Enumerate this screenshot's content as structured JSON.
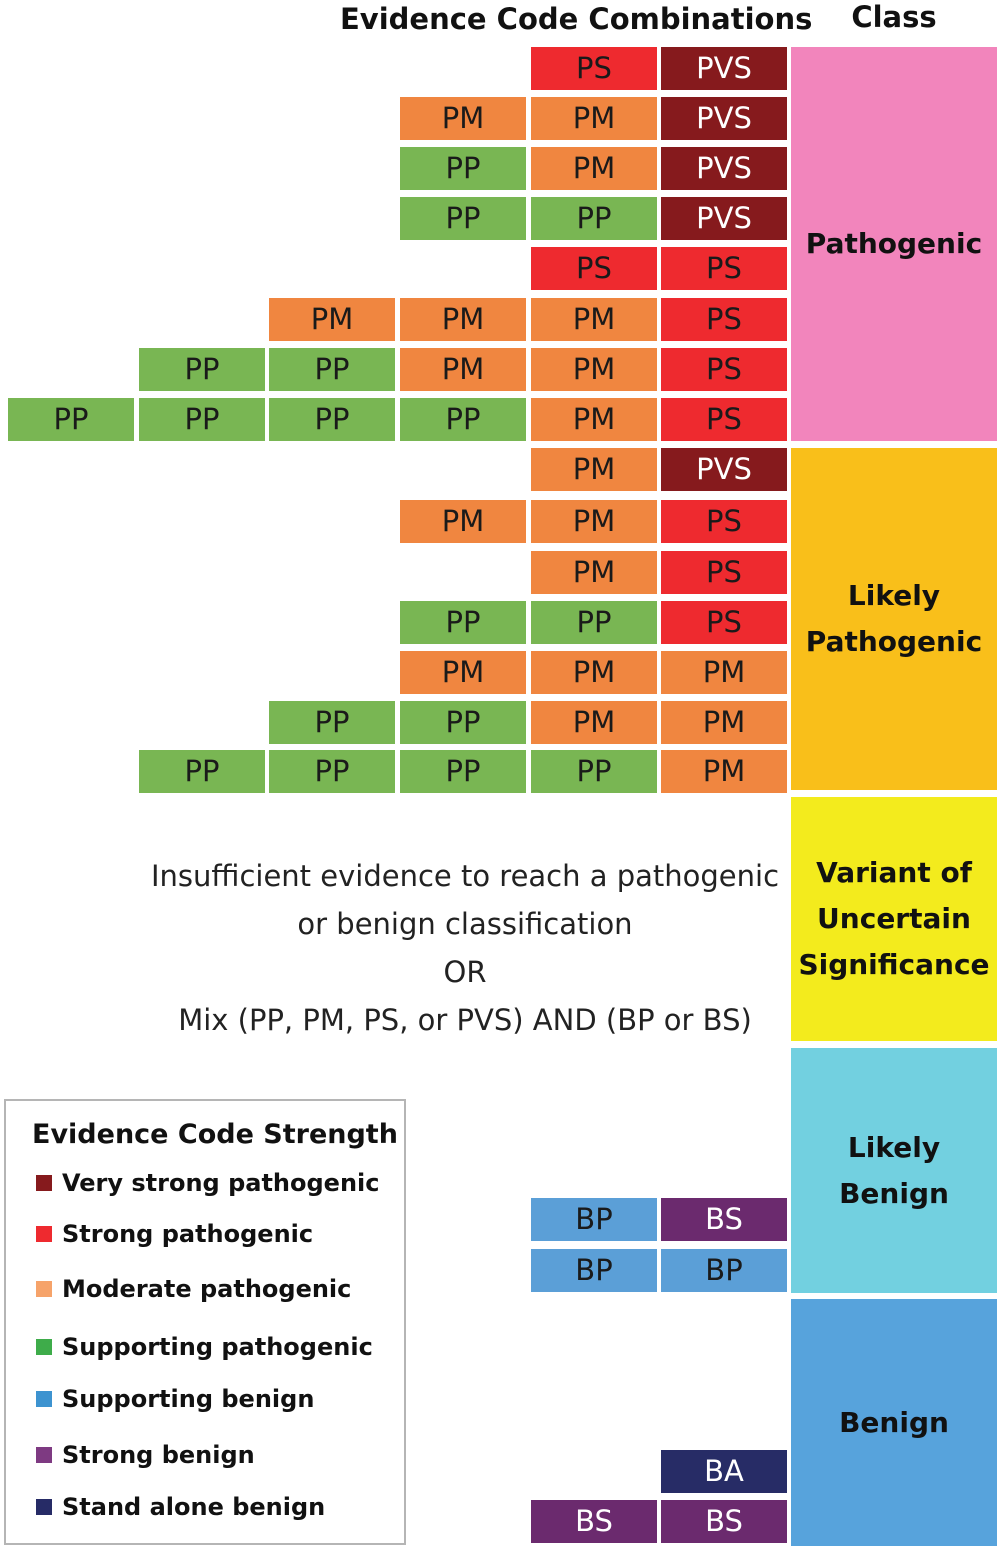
{
  "header": {
    "combinations_title": "Evidence Code Combinations",
    "class_title": "Class"
  },
  "colors": {
    "PVS": "#861a1d",
    "PS": "#ee2a2f",
    "PM": "#f08640",
    "PP": "#79b653",
    "BP": "#5b9fd7",
    "BS": "#6b2a6e",
    "BA": "#272c66",
    "class_pathogenic": "#f285bc",
    "class_likely_pathogenic": "#f9bf1a",
    "class_vus": "#f3eb1d",
    "class_likely_benign": "#72d0e0",
    "class_benign": "#57a3dc",
    "legend_very_strong_pathogenic": "#861a1d",
    "legend_strong_pathogenic": "#ee2a2f",
    "legend_moderate_pathogenic": "#f6a36a",
    "legend_supporting_pathogenic": "#3eac4a",
    "legend_supporting_benign": "#3d93d0",
    "legend_strong_benign": "#7e3a82",
    "legend_stand_alone_benign": "#262b66"
  },
  "combination_rows": [
    [
      "PS",
      "PVS"
    ],
    [
      "PM",
      "PM",
      "PVS"
    ],
    [
      "PP",
      "PM",
      "PVS"
    ],
    [
      "PP",
      "PP",
      "PVS"
    ],
    [
      "PS",
      "PS"
    ],
    [
      "PM",
      "PM",
      "PM",
      "PS"
    ],
    [
      "PP",
      "PP",
      "PM",
      "PM",
      "PS"
    ],
    [
      "PP",
      "PP",
      "PP",
      "PP",
      "PM",
      "PS"
    ],
    [
      "PM",
      "PVS"
    ],
    [
      "PM",
      "PM",
      "PS"
    ],
    [
      "PM",
      "PS"
    ],
    [
      "PP",
      "PP",
      "PS"
    ],
    [
      "PM",
      "PM",
      "PM"
    ],
    [
      "PP",
      "PP",
      "PM",
      "PM"
    ],
    [
      "PP",
      "PP",
      "PP",
      "PP",
      "PM"
    ],
    [
      "BP",
      "BS"
    ],
    [
      "BP",
      "BP"
    ],
    [
      "BA"
    ],
    [
      "BS",
      "BS"
    ]
  ],
  "classes": {
    "pathogenic": "Pathogenic",
    "likely_pathogenic": "Likely\nPathogenic",
    "vus": "Variant of\nUncertain\nSignificance",
    "likely_benign": "Likely\nBenign",
    "benign": "Benign"
  },
  "vus_text": {
    "line1": "Insufficient evidence to reach a pathogenic",
    "line2": "or benign classification",
    "line3": "OR",
    "line4": "Mix (PP, PM, PS, or PVS) AND (BP or BS)"
  },
  "legend": {
    "title": "Evidence Code Strength",
    "items": [
      {
        "label": "Very strong pathogenic",
        "color_key": "legend_very_strong_pathogenic"
      },
      {
        "label": "Strong pathogenic",
        "color_key": "legend_strong_pathogenic"
      },
      {
        "label": "Moderate pathogenic",
        "color_key": "legend_moderate_pathogenic"
      },
      {
        "label": "Supporting pathogenic",
        "color_key": "legend_supporting_pathogenic"
      },
      {
        "label": "Supporting benign",
        "color_key": "legend_supporting_benign"
      },
      {
        "label": "Strong benign",
        "color_key": "legend_strong_benign"
      },
      {
        "label": "Stand alone benign",
        "color_key": "legend_stand_alone_benign"
      }
    ]
  }
}
